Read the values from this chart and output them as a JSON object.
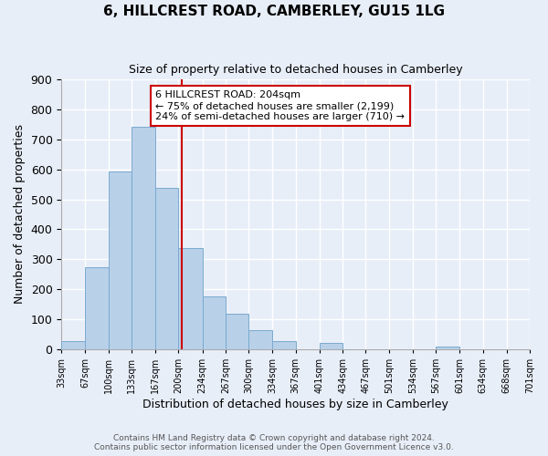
{
  "title": "6, HILLCREST ROAD, CAMBERLEY, GU15 1LG",
  "subtitle": "Size of property relative to detached houses in Camberley",
  "xlabel": "Distribution of detached houses by size in Camberley",
  "ylabel": "Number of detached properties",
  "bar_color": "#b8d0e8",
  "bar_edge_color": "#7aaacf",
  "background_color": "#e8eef8",
  "grid_color": "#ffffff",
  "vline_x": 204,
  "vline_color": "#cc0000",
  "bin_edges": [
    33,
    67,
    100,
    133,
    167,
    200,
    234,
    267,
    300,
    334,
    367,
    401,
    434,
    467,
    501,
    534,
    567,
    601,
    634,
    668,
    701
  ],
  "bin_labels": [
    "33sqm",
    "67sqm",
    "100sqm",
    "133sqm",
    "167sqm",
    "200sqm",
    "234sqm",
    "267sqm",
    "300sqm",
    "334sqm",
    "367sqm",
    "401sqm",
    "434sqm",
    "467sqm",
    "501sqm",
    "534sqm",
    "567sqm",
    "601sqm",
    "634sqm",
    "668sqm",
    "701sqm"
  ],
  "counts": [
    27,
    275,
    592,
    742,
    537,
    337,
    175,
    120,
    65,
    27,
    0,
    20,
    0,
    0,
    0,
    0,
    10,
    0,
    0,
    0
  ],
  "ylim": [
    0,
    900
  ],
  "yticks": [
    0,
    100,
    200,
    300,
    400,
    500,
    600,
    700,
    800,
    900
  ],
  "annotation_title": "6 HILLCREST ROAD: 204sqm",
  "annotation_line1": "← 75% of detached houses are smaller (2,199)",
  "annotation_line2": "24% of semi-detached houses are larger (710) →",
  "annotation_box_color": "#ffffff",
  "annotation_border_color": "#cc0000",
  "footer_line1": "Contains HM Land Registry data © Crown copyright and database right 2024.",
  "footer_line2": "Contains public sector information licensed under the Open Government Licence v3.0."
}
